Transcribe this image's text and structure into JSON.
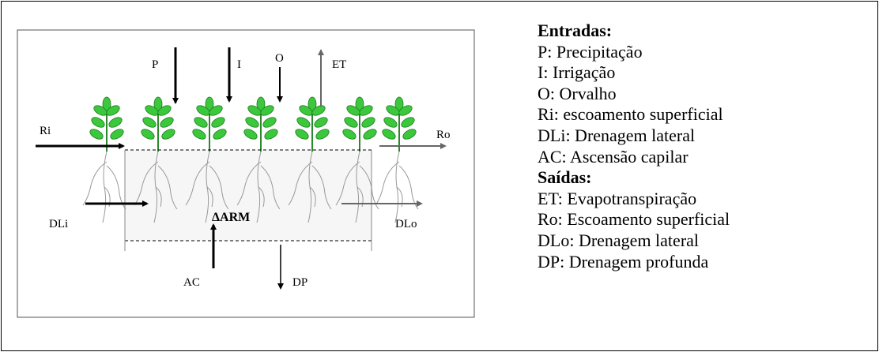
{
  "diagram": {
    "labels": {
      "P": "P",
      "I": "I",
      "O": "O",
      "ET": "ET",
      "Ri": "Ri",
      "Ro": "Ro",
      "DLi": "DLi",
      "DLo": "DLo",
      "AC": "AC",
      "DP": "DP",
      "storage": "ΔARM"
    }
  },
  "legend": {
    "inputs_title": "Entradas:",
    "inputs": [
      "P: Precipitação",
      "I: Irrigação",
      "O: Orvalho",
      "Ri: escoamento superficial",
      "DLi: Drenagem lateral",
      "AC: Ascensão capilar"
    ],
    "outputs_title": "Saídas:",
    "outputs": [
      "ET: Evapotranspiração",
      "Ro: Escoamento superficial",
      "DLo: Drenagem lateral",
      "DP: Drenagem profunda"
    ]
  }
}
